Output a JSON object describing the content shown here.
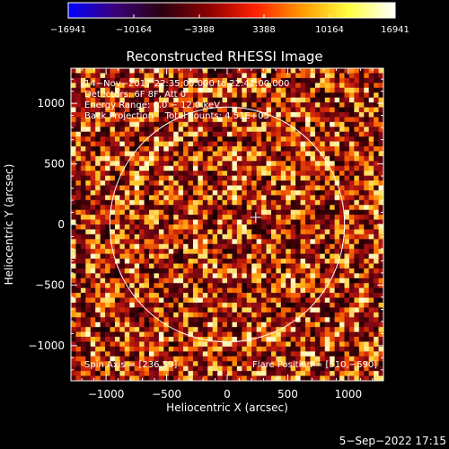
{
  "colorbar": {
    "ticks": [
      "−16941",
      "−10164",
      "−3388",
      "3388",
      "10164",
      "16941"
    ],
    "stops": [
      "#0000ff",
      "#3a007a",
      "#2a0010",
      "#8a0000",
      "#ff2000",
      "#ff9800",
      "#ffff40",
      "#ffffff"
    ]
  },
  "chart_data": {
    "type": "heatmap",
    "title": "Reconstructed RHESSI Image",
    "xlabel": "Heliocentric X (arcsec)",
    "ylabel": "Heliocentric Y (arcsec)",
    "xlim": [
      -1290,
      1290
    ],
    "ylim": [
      -1290,
      1290
    ],
    "xticks": [
      -1000,
      -500,
      0,
      500,
      1000
    ],
    "yticks": [
      -1000,
      -500,
      0,
      500,
      1000
    ],
    "xtick_labels": [
      "−1000",
      "−500",
      "0",
      "500",
      "1000"
    ],
    "ytick_labels": [
      "−1000",
      "−500",
      "0",
      "500",
      "1000"
    ],
    "value_range": [
      -16941,
      16941
    ],
    "solar_limb_radius": 969,
    "flare_position": [
      510,
      -690
    ],
    "spin_axis": [
      236,
      59
    ],
    "annotations": {
      "time": "14−Nov−2017 22:35:00.000 to 22:41:00.000",
      "detectors": "Detectors: 6F 8F, Att 0",
      "energy": "Energy Range: 6.0 − 12.0 keV",
      "method": "Back Projection    Total counts: 4.51E+05",
      "spin_axis": "Spin Axis = [236,59]",
      "flare_position": "Flare Position = [510,−690]"
    }
  },
  "footer": {
    "date": "5−Sep−2022 17:15"
  }
}
